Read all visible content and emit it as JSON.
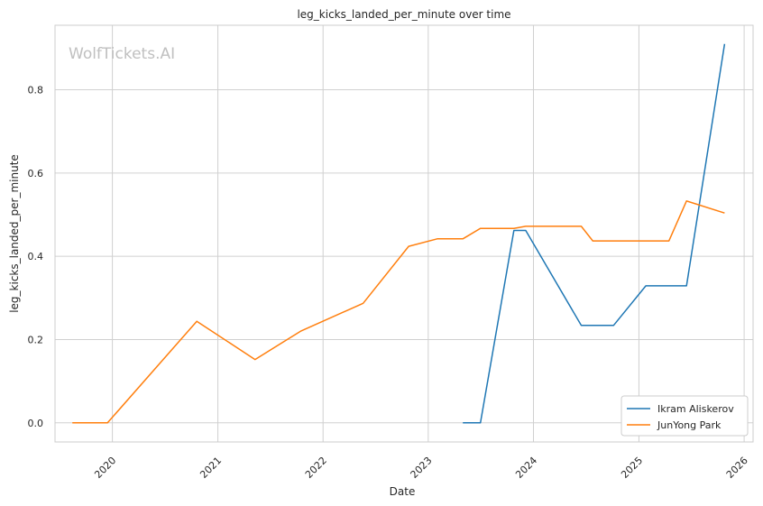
{
  "chart_data": {
    "type": "line",
    "title": "leg_kicks_landed_per_minute over time",
    "xlabel": "Date",
    "ylabel": "leg_kicks_landed_per_minute",
    "watermark": "WolfTickets.AI",
    "x_ticks": [
      "2020",
      "2021",
      "2022",
      "2023",
      "2024",
      "2025",
      "2026"
    ],
    "y_ticks": [
      "0.0",
      "0.2",
      "0.4",
      "0.6",
      "0.8"
    ],
    "xlim": [
      "2019-06-16",
      "2026-02-01"
    ],
    "ylim": [
      -0.046,
      0.955
    ],
    "grid": true,
    "legend_position": "lower-right",
    "series": [
      {
        "name": "Ikram Aliskerov",
        "color": "#1f77b4",
        "points": [
          [
            "2023-05-01",
            0.0
          ],
          [
            "2023-07-01",
            0.0
          ],
          [
            "2023-10-25",
            0.462
          ],
          [
            "2023-12-05",
            0.462
          ],
          [
            "2024-06-15",
            0.234
          ],
          [
            "2024-10-05",
            0.234
          ],
          [
            "2025-01-25",
            0.329
          ],
          [
            "2025-06-15",
            0.329
          ],
          [
            "2025-10-25",
            0.91
          ]
        ]
      },
      {
        "name": "JunYong Park",
        "color": "#ff7f0e",
        "points": [
          [
            "2019-08-15",
            0.0
          ],
          [
            "2019-12-15",
            0.0
          ],
          [
            "2020-10-20",
            0.244
          ],
          [
            "2021-05-10",
            0.152
          ],
          [
            "2021-10-15",
            0.22
          ],
          [
            "2022-05-20",
            0.287
          ],
          [
            "2022-10-25",
            0.424
          ],
          [
            "2023-02-01",
            0.442
          ],
          [
            "2023-05-01",
            0.442
          ],
          [
            "2023-07-01",
            0.467
          ],
          [
            "2023-10-25",
            0.467
          ],
          [
            "2023-12-05",
            0.472
          ],
          [
            "2024-06-15",
            0.472
          ],
          [
            "2024-07-25",
            0.437
          ],
          [
            "2025-04-15",
            0.437
          ],
          [
            "2025-06-15",
            0.533
          ],
          [
            "2025-10-25",
            0.504
          ]
        ]
      }
    ]
  }
}
